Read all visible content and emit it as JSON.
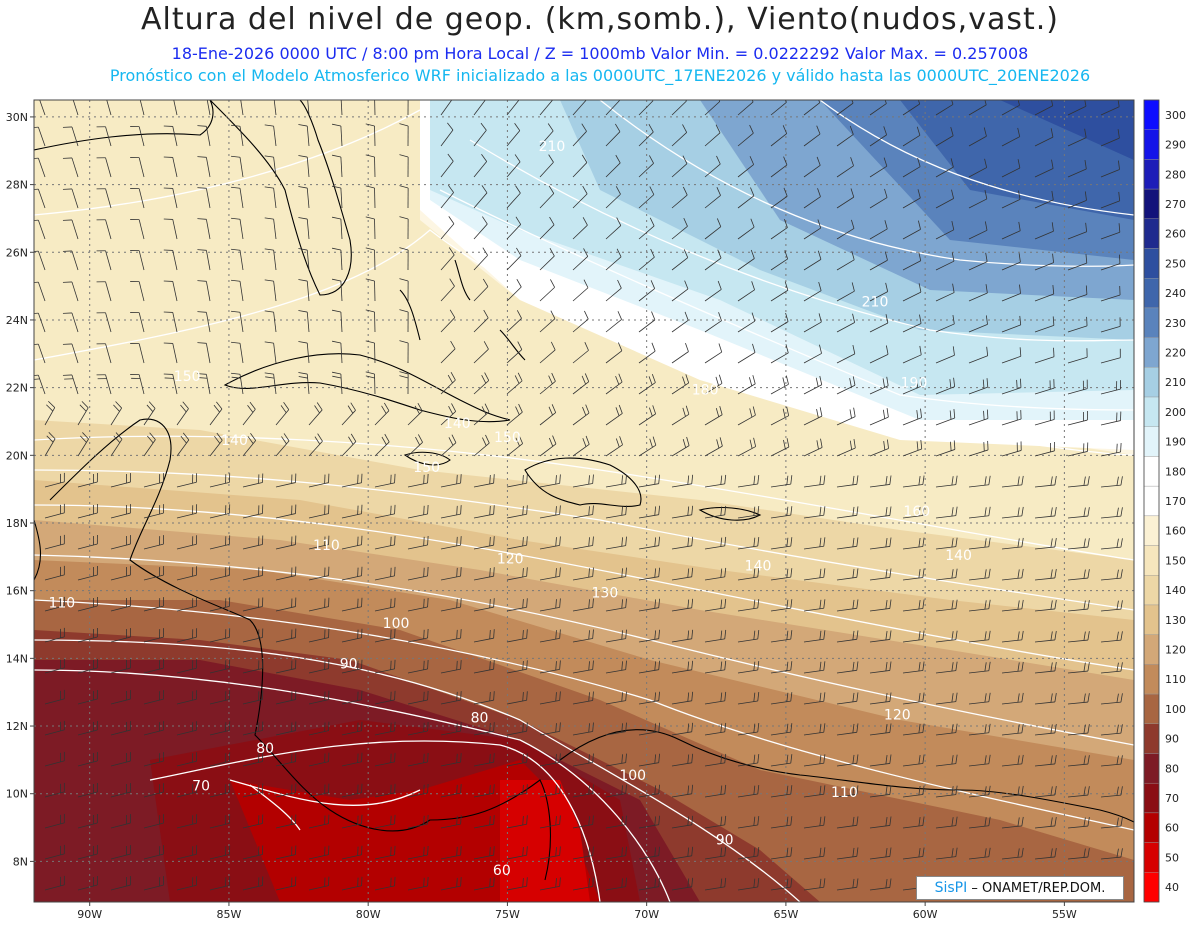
{
  "header": {
    "title": "Altura del nivel de geop. (km,somb.), Viento(nudos,vast.)",
    "line1": "18-Ene-2026  0000 UTC / 8:00 pm Hora Local / Z = 1000mb  Valor Min. = 0.0222292   Valor Max. = 0.257008",
    "line2": "Pronóstico con el Modelo Atmosferico WRF inicializado a las 0000UTC_17ENE2026 y válido hasta las  0000UTC_20ENE2026"
  },
  "map": {
    "lon_range": [
      -92,
      -52.5
    ],
    "lat_range": [
      6.8,
      30.5
    ],
    "lat_ticks": [
      "30N",
      "28N",
      "26N",
      "24N",
      "22N",
      "20N",
      "18N",
      "16N",
      "14N",
      "12N",
      "10N",
      "8N"
    ],
    "lon_ticks": [
      "90W",
      "85W",
      "80W",
      "75W",
      "70W",
      "65W",
      "60W",
      "55W"
    ],
    "contour_labels": [
      {
        "text": "210",
        "lon": -73.4,
        "lat": 29.0
      },
      {
        "text": "210",
        "lon": -61.8,
        "lat": 24.4
      },
      {
        "text": "190",
        "lon": -60.4,
        "lat": 22.0
      },
      {
        "text": "180",
        "lon": -67.9,
        "lat": 21.8
      },
      {
        "text": "150",
        "lon": -86.5,
        "lat": 22.2
      },
      {
        "text": "140",
        "lon": -84.8,
        "lat": 20.3
      },
      {
        "text": "140",
        "lon": -76.8,
        "lat": 20.8
      },
      {
        "text": "150",
        "lon": -75.0,
        "lat": 20.4
      },
      {
        "text": "150",
        "lon": -77.9,
        "lat": 19.5
      },
      {
        "text": "160",
        "lon": -60.3,
        "lat": 18.2
      },
      {
        "text": "140",
        "lon": -58.8,
        "lat": 16.9
      },
      {
        "text": "140",
        "lon": -66.0,
        "lat": 16.6
      },
      {
        "text": "130",
        "lon": -71.5,
        "lat": 15.8
      },
      {
        "text": "120",
        "lon": -74.9,
        "lat": 16.8
      },
      {
        "text": "110",
        "lon": -81.5,
        "lat": 17.2
      },
      {
        "text": "110",
        "lon": -91.0,
        "lat": 15.5
      },
      {
        "text": "100",
        "lon": -79.0,
        "lat": 14.9
      },
      {
        "text": "90",
        "lon": -80.7,
        "lat": 13.7
      },
      {
        "text": "80",
        "lon": -76.0,
        "lat": 12.1
      },
      {
        "text": "80",
        "lon": -83.7,
        "lat": 11.2
      },
      {
        "text": "70",
        "lon": -86.0,
        "lat": 10.1
      },
      {
        "text": "120",
        "lon": -61.0,
        "lat": 12.2
      },
      {
        "text": "100",
        "lon": -70.5,
        "lat": 10.4
      },
      {
        "text": "110",
        "lon": -62.9,
        "lat": 9.9
      },
      {
        "text": "90",
        "lon": -67.2,
        "lat": 8.5
      },
      {
        "text": "60",
        "lon": -75.2,
        "lat": 7.6
      }
    ],
    "colorbar": {
      "levels": [
        "300",
        "290",
        "280",
        "270",
        "260",
        "250",
        "240",
        "230",
        "220",
        "210",
        "200",
        "190",
        "180",
        "170",
        "160",
        "150",
        "140",
        "130",
        "120",
        "110",
        "100",
        "90",
        "80",
        "70",
        "60",
        "50",
        "40"
      ],
      "colors": [
        "#0d0dff",
        "#1414e8",
        "#1d1db8",
        "#12127a",
        "#1f2a8e",
        "#2e4f9f",
        "#3f66ab",
        "#5a83bc",
        "#7ea6d0",
        "#a6cfe4",
        "#c6e7f1",
        "#e2f4fa",
        "#ffffff",
        "#ffffff",
        "#fbf1d4",
        "#f6e6bd",
        "#edd7a6",
        "#e3c38d",
        "#d3a878",
        "#c28b5b",
        "#a86642",
        "#8e3a2d",
        "#7d1b25",
        "#8a0e14",
        "#b30000",
        "#d60000",
        "#ff0000"
      ]
    }
  },
  "credit": {
    "logo": "SisPI",
    "text": "– ONAMET/REP.DOM."
  }
}
